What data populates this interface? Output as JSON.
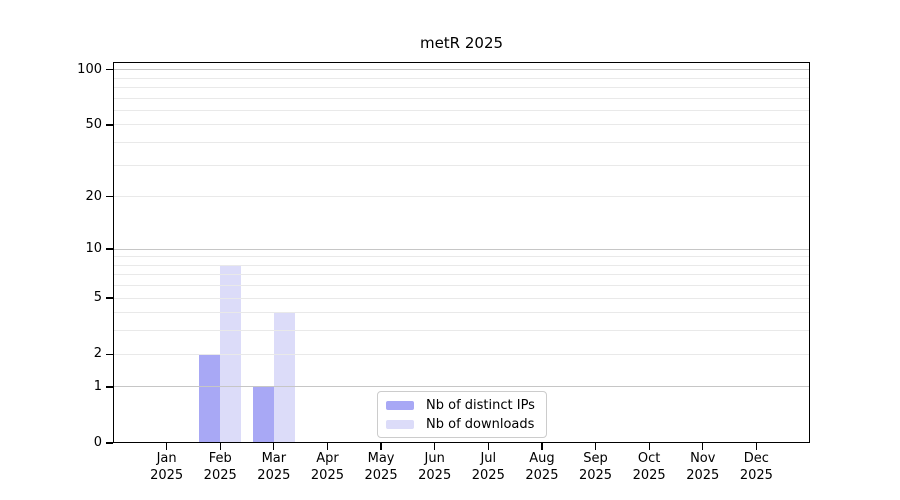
{
  "chart_data": {
    "type": "bar",
    "title": "metR 2025",
    "categories": [
      "Jan 2025",
      "Feb 2025",
      "Mar 2025",
      "Apr 2025",
      "May 2025",
      "Jun 2025",
      "Jul 2025",
      "Aug 2025",
      "Sep 2025",
      "Oct 2025",
      "Nov 2025",
      "Dec 2025"
    ],
    "x_months": [
      "Jan",
      "Feb",
      "Mar",
      "Apr",
      "May",
      "Jun",
      "Jul",
      "Aug",
      "Sep",
      "Oct",
      "Nov",
      "Dec"
    ],
    "x_year": "2025",
    "series": [
      {
        "name": "Nb of distinct IPs",
        "color": "#a8a8f5",
        "values": [
          0,
          2,
          1,
          0,
          0,
          0,
          0,
          0,
          0,
          0,
          0,
          0
        ]
      },
      {
        "name": "Nb of downloads",
        "color": "#dcdcf9",
        "values": [
          0,
          8,
          4,
          0,
          0,
          0,
          0,
          0,
          0,
          0,
          0,
          0
        ]
      }
    ],
    "yscale": "log1p",
    "ylim": [
      0,
      110
    ],
    "y_tick_values": [
      0,
      1,
      2,
      5,
      10,
      20,
      50,
      100
    ],
    "grid": {
      "on": true,
      "major_values": [
        1,
        10,
        100
      ],
      "minor_values": [
        2,
        3,
        4,
        5,
        6,
        7,
        8,
        9,
        20,
        30,
        40,
        50,
        60,
        70,
        80,
        90
      ],
      "major_color": "#c6c6c6",
      "minor_color": "#e9e9e9"
    },
    "legend_position": "lower center",
    "xlabel": "",
    "ylabel": ""
  },
  "colors": {
    "background": "#ffffff",
    "spine": "#000000",
    "legend_border": "#cccccc",
    "text": "#000000"
  }
}
